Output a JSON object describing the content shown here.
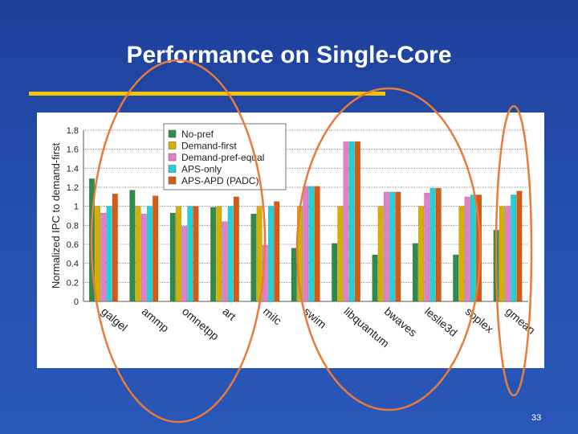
{
  "slide": {
    "title": "Performance on Single-Core",
    "page_number": "33",
    "background_color": "#2550b0",
    "rule_color": "#f2c500",
    "highlight_color": "#e87a3a"
  },
  "chart_data": {
    "type": "bar",
    "title": "",
    "ylabel": "Normalized IPC to demand-first",
    "xlabel": "",
    "ylim": [
      0,
      1.8
    ],
    "yticks": [
      "0",
      "0.2",
      "0.4",
      "0.6",
      "0.8",
      "1",
      "1.2",
      "1.4",
      "1.6",
      "1.8"
    ],
    "grid": true,
    "legend_position": "top-center",
    "categories": [
      "galgel",
      "ammp",
      "omnetpp",
      "art",
      "milc",
      "swim",
      "libquantum",
      "bwaves",
      "leslie3d",
      "soplex",
      "gmean"
    ],
    "series": [
      {
        "name": "No-pref",
        "color": "#2e8b4a",
        "values": [
          1.29,
          1.17,
          0.93,
          0.99,
          0.92,
          0.56,
          0.61,
          0.49,
          0.61,
          0.49,
          0.75
        ]
      },
      {
        "name": "Demand-first",
        "color": "#d4b000",
        "values": [
          1.0,
          1.0,
          1.0,
          1.0,
          1.0,
          1.0,
          1.0,
          1.0,
          1.0,
          1.0,
          1.0
        ]
      },
      {
        "name": "Demand-pref-equal",
        "color": "#e080c8",
        "values": [
          0.93,
          0.92,
          0.79,
          0.84,
          0.59,
          1.21,
          1.68,
          1.15,
          1.14,
          1.1,
          1.0
        ]
      },
      {
        "name": "APS-only",
        "color": "#22d0d8",
        "values": [
          1.0,
          1.0,
          1.0,
          1.0,
          1.0,
          1.21,
          1.68,
          1.15,
          1.19,
          1.12,
          1.12
        ]
      },
      {
        "name": "APS-APD (PADC)",
        "color": "#d85a10",
        "values": [
          1.13,
          1.11,
          1.0,
          1.1,
          1.05,
          1.21,
          1.68,
          1.15,
          1.19,
          1.12,
          1.16
        ]
      }
    ]
  }
}
